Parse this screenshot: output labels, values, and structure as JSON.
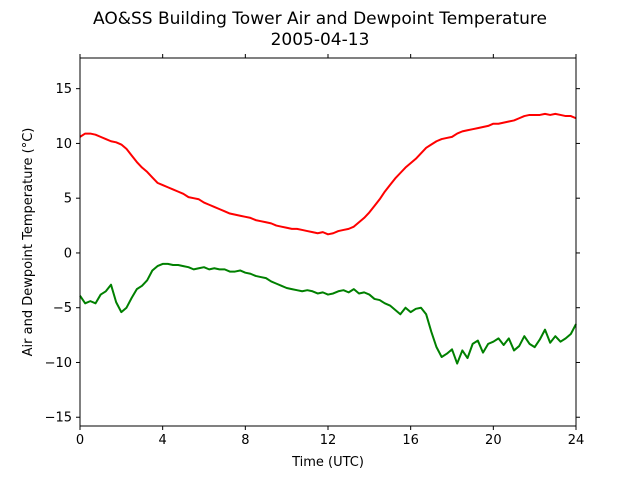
{
  "chart_data": {
    "type": "line",
    "title": "AO&SS Building Tower Air and Dewpoint Temperature",
    "subtitle": "2005-04-13",
    "xlabel": "Time (UTC)",
    "ylabel": "Air and Dewpoint Temperature (°C)",
    "xlim": [
      0,
      24
    ],
    "ylim": [
      -15.8,
      17.8
    ],
    "xticks": [
      0,
      4,
      8,
      12,
      16,
      20,
      24
    ],
    "yticks": [
      -15,
      -10,
      -5,
      0,
      5,
      10,
      15
    ],
    "grid": false,
    "legend": "none",
    "series": [
      {
        "color": "#ff0000",
        "x": [
          0,
          0.25,
          0.5,
          0.75,
          1,
          1.25,
          1.5,
          1.75,
          2,
          2.25,
          2.5,
          2.75,
          3,
          3.25,
          3.5,
          3.75,
          4,
          4.25,
          4.5,
          4.75,
          5,
          5.25,
          5.5,
          5.75,
          6,
          6.25,
          6.5,
          6.75,
          7,
          7.25,
          7.5,
          7.75,
          8,
          8.25,
          8.5,
          8.75,
          9,
          9.25,
          9.5,
          9.75,
          10,
          10.25,
          10.5,
          10.75,
          11,
          11.25,
          11.5,
          11.75,
          12,
          12.25,
          12.5,
          12.75,
          13,
          13.25,
          13.5,
          13.75,
          14,
          14.25,
          14.5,
          14.75,
          15,
          15.25,
          15.5,
          15.75,
          16,
          16.25,
          16.5,
          16.75,
          17,
          17.25,
          17.5,
          17.75,
          18,
          18.25,
          18.5,
          18.75,
          19,
          19.25,
          19.5,
          19.75,
          20,
          20.25,
          20.5,
          20.75,
          21,
          21.25,
          21.5,
          21.75,
          22,
          22.25,
          22.5,
          22.75,
          23,
          23.25,
          23.5,
          23.75,
          24
        ],
        "values": [
          10.6,
          10.9,
          10.9,
          10.8,
          10.6,
          10.4,
          10.2,
          10.1,
          9.9,
          9.5,
          8.9,
          8.3,
          7.8,
          7.4,
          6.9,
          6.4,
          6.2,
          6.0,
          5.8,
          5.6,
          5.4,
          5.1,
          5.0,
          4.9,
          4.6,
          4.4,
          4.2,
          4.0,
          3.8,
          3.6,
          3.5,
          3.4,
          3.3,
          3.2,
          3.0,
          2.9,
          2.8,
          2.7,
          2.5,
          2.4,
          2.3,
          2.2,
          2.2,
          2.1,
          2.0,
          1.9,
          1.8,
          1.9,
          1.7,
          1.8,
          2.0,
          2.1,
          2.2,
          2.4,
          2.8,
          3.2,
          3.7,
          4.3,
          4.9,
          5.6,
          6.2,
          6.8,
          7.3,
          7.8,
          8.2,
          8.6,
          9.1,
          9.6,
          9.9,
          10.2,
          10.4,
          10.5,
          10.6,
          10.9,
          11.1,
          11.2,
          11.3,
          11.4,
          11.5,
          11.6,
          11.8,
          11.8,
          11.9,
          12.0,
          12.1,
          12.3,
          12.5,
          12.6,
          12.6,
          12.6,
          12.7,
          12.6,
          12.7,
          12.6,
          12.5,
          12.5,
          12.3
        ]
      },
      {
        "color": "#008000",
        "x": [
          0,
          0.25,
          0.5,
          0.75,
          1,
          1.25,
          1.5,
          1.75,
          2,
          2.25,
          2.5,
          2.75,
          3,
          3.25,
          3.5,
          3.75,
          4,
          4.25,
          4.5,
          4.75,
          5,
          5.25,
          5.5,
          5.75,
          6,
          6.25,
          6.5,
          6.75,
          7,
          7.25,
          7.5,
          7.75,
          8,
          8.25,
          8.5,
          8.75,
          9,
          9.25,
          9.5,
          9.75,
          10,
          10.25,
          10.5,
          10.75,
          11,
          11.25,
          11.5,
          11.75,
          12,
          12.25,
          12.5,
          12.75,
          13,
          13.25,
          13.5,
          13.75,
          14,
          14.25,
          14.5,
          14.75,
          15,
          15.25,
          15.5,
          15.75,
          16,
          16.25,
          16.5,
          16.75,
          17,
          17.25,
          17.5,
          17.75,
          18,
          18.25,
          18.5,
          18.75,
          19,
          19.25,
          19.5,
          19.75,
          20,
          20.25,
          20.5,
          20.75,
          21,
          21.25,
          21.5,
          21.75,
          22,
          22.25,
          22.5,
          22.75,
          23,
          23.25,
          23.5,
          23.75,
          24
        ],
        "values": [
          -3.9,
          -4.6,
          -4.4,
          -4.6,
          -3.8,
          -3.5,
          -2.9,
          -4.5,
          -5.4,
          -5.0,
          -4.1,
          -3.3,
          -3.0,
          -2.5,
          -1.6,
          -1.2,
          -1.0,
          -1.0,
          -1.1,
          -1.1,
          -1.2,
          -1.3,
          -1.5,
          -1.4,
          -1.3,
          -1.5,
          -1.4,
          -1.5,
          -1.5,
          -1.7,
          -1.7,
          -1.6,
          -1.8,
          -1.9,
          -2.1,
          -2.2,
          -2.3,
          -2.6,
          -2.8,
          -3.0,
          -3.2,
          -3.3,
          -3.4,
          -3.5,
          -3.4,
          -3.5,
          -3.7,
          -3.6,
          -3.8,
          -3.7,
          -3.5,
          -3.4,
          -3.6,
          -3.3,
          -3.7,
          -3.6,
          -3.8,
          -4.2,
          -4.3,
          -4.6,
          -4.8,
          -5.2,
          -5.6,
          -5.0,
          -5.4,
          -5.1,
          -5.0,
          -5.6,
          -7.2,
          -8.6,
          -9.5,
          -9.2,
          -8.8,
          -10.1,
          -8.9,
          -9.6,
          -8.3,
          -8.0,
          -9.1,
          -8.3,
          -8.1,
          -7.8,
          -8.4,
          -7.8,
          -8.9,
          -8.5,
          -7.6,
          -8.3,
          -8.6,
          -7.9,
          -7.0,
          -8.2,
          -7.6,
          -8.1,
          -7.8,
          -7.4,
          -6.5
        ]
      }
    ]
  }
}
